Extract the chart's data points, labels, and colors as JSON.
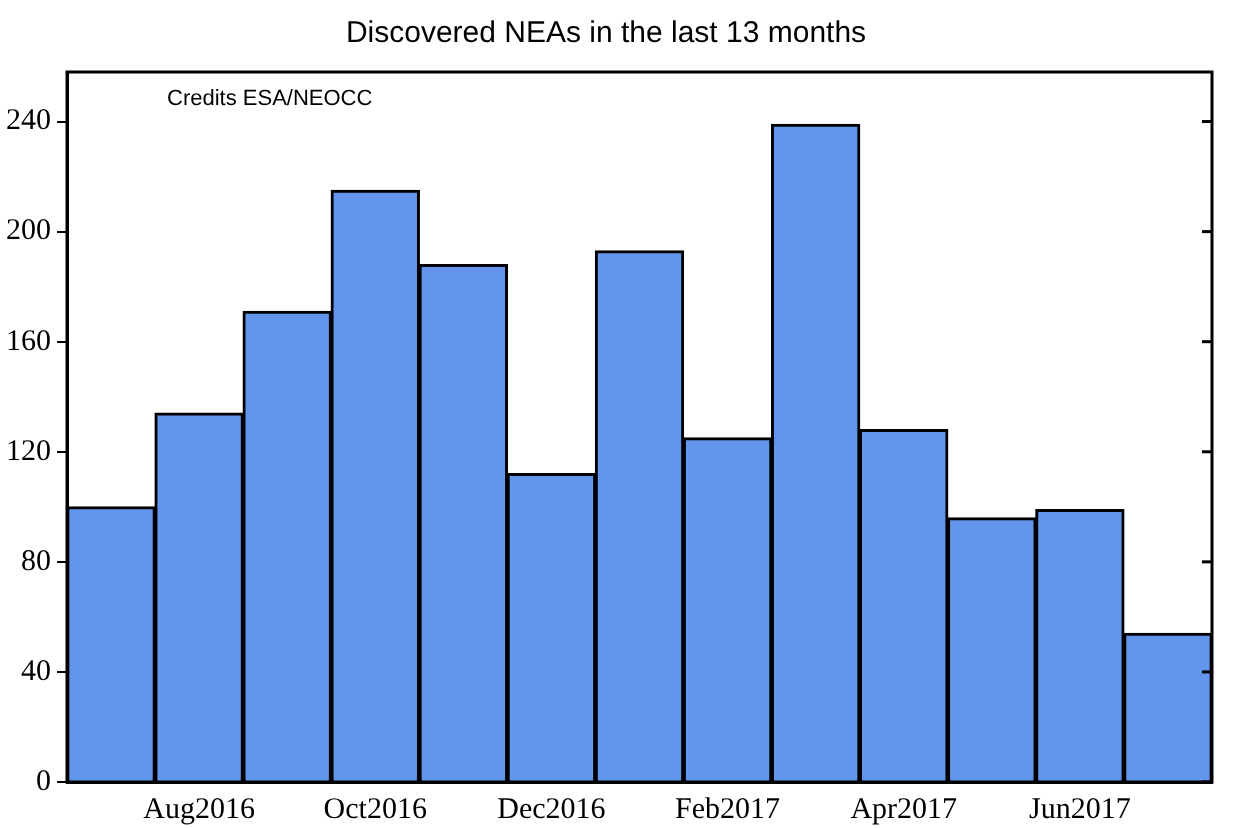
{
  "chart_data": {
    "type": "bar",
    "title": "Discovered NEAs in the last 13 months",
    "categories": [
      null,
      "Aug2016",
      null,
      "Oct2016",
      null,
      "Dec2016",
      null,
      "Feb2017",
      null,
      "Apr2017",
      null,
      "Jun2017",
      null
    ],
    "values": [
      100,
      134,
      171,
      215,
      188,
      112,
      193,
      125,
      239,
      128,
      96,
      99,
      54
    ],
    "color": "#6495ed",
    "ylim": [
      0,
      258
    ],
    "yticks": [
      0,
      40,
      80,
      120,
      160,
      200,
      240
    ],
    "grid": false,
    "annotations": [
      "Credits ESA/NEOCC"
    ]
  }
}
